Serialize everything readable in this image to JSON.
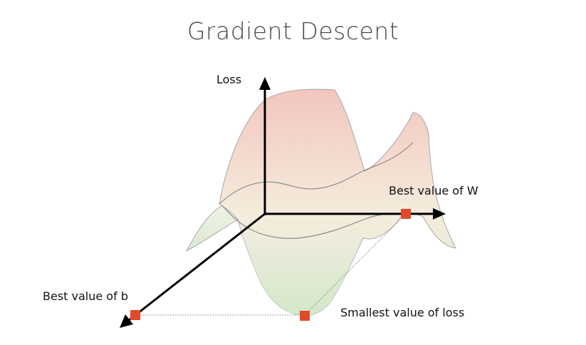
{
  "title": "Gradient Descent",
  "labels": {
    "loss_axis": "Loss",
    "best_w": "Best value of W",
    "best_b": "Best value of b",
    "smallest_loss": "Smallest value of loss"
  },
  "colors": {
    "axis": "#000000",
    "marker": "#e04a2a",
    "surface_top": "#f2c8c0",
    "surface_bottom": "#dcebd2",
    "surface_stroke": "#9a9a9a"
  }
}
